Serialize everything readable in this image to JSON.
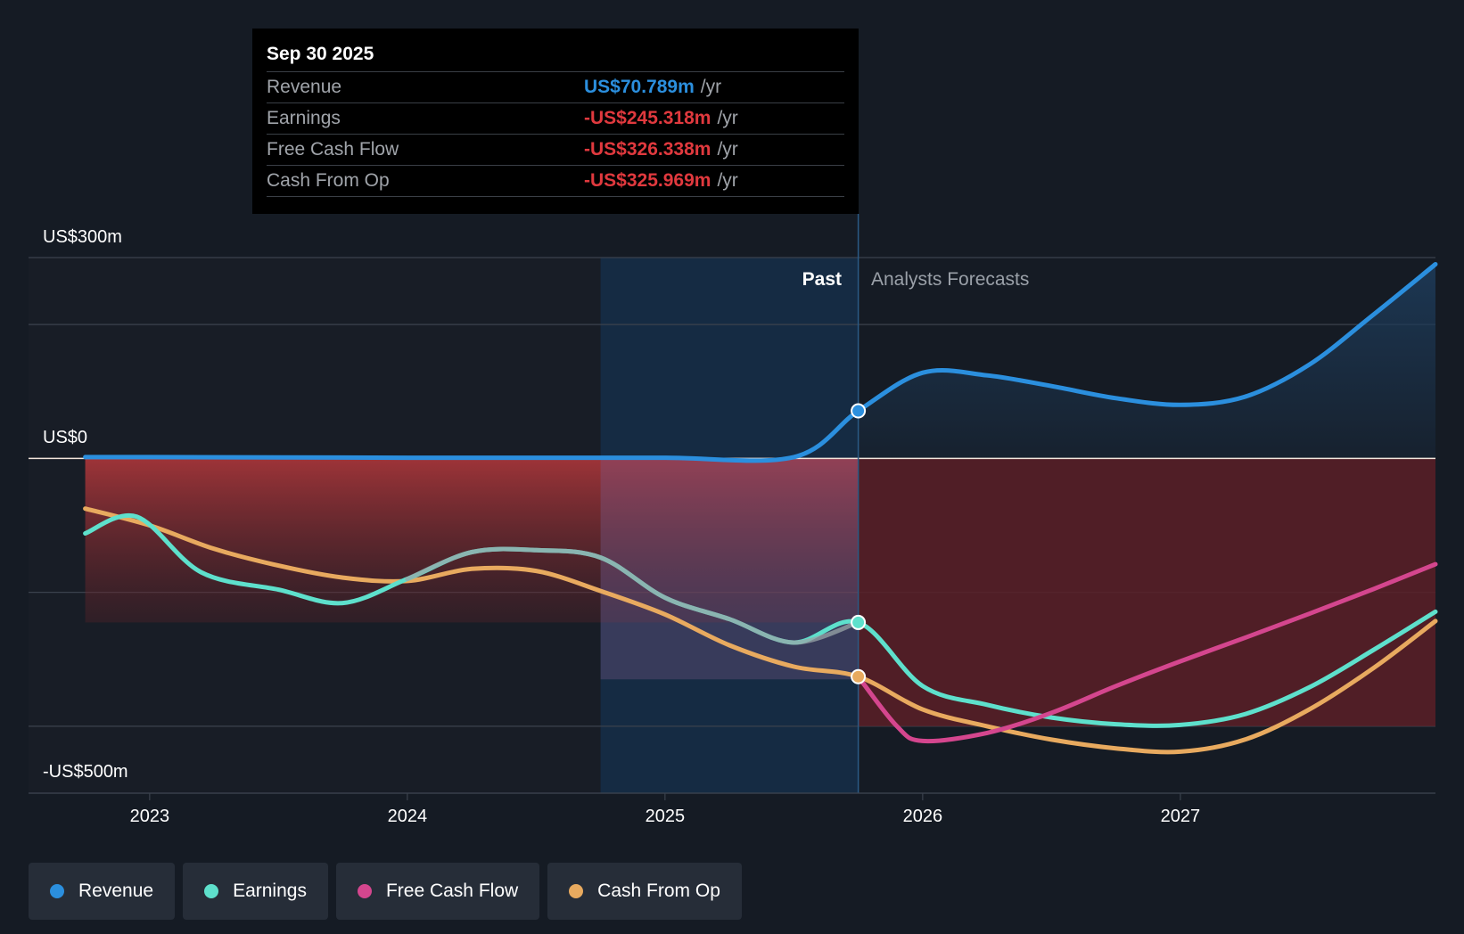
{
  "chart_data": {
    "type": "line",
    "title": "",
    "y_axis_labels": {
      "top": "US$300m",
      "zero": "US$0",
      "bottom": "-US$500m"
    },
    "ylim": [
      -500,
      300
    ],
    "xlim": [
      2022.53,
      2027.99
    ],
    "x_ticks": [
      {
        "value": 2023,
        "label": "2023"
      },
      {
        "value": 2024,
        "label": "2024"
      },
      {
        "value": 2025,
        "label": "2025"
      },
      {
        "value": 2026,
        "label": "2026"
      },
      {
        "value": 2027,
        "label": "2027"
      }
    ],
    "grid_values": [
      300,
      200,
      0,
      -200,
      -400,
      -500
    ],
    "past_label": "Past",
    "forecast_label": "Analysts Forecasts",
    "past_forecast_divider_x": 2025.75,
    "highlight_region_x": [
      2024.75,
      2025.75
    ],
    "series": [
      {
        "name": "Revenue",
        "color": "#2b8fde",
        "x": [
          2022.75,
          2023.0,
          2023.5,
          2024.0,
          2024.5,
          2025.0,
          2025.5,
          2025.75,
          2026.0,
          2026.25,
          2026.5,
          2026.75,
          2027.0,
          2027.25,
          2027.5,
          2027.75,
          2027.99
        ],
        "values": [
          2,
          2,
          1.5,
          1,
          1,
          1,
          2,
          71,
          128,
          124,
          108,
          90,
          80,
          92,
          140,
          215,
          290
        ]
      },
      {
        "name": "Earnings",
        "color": "#5ee0cc",
        "x": [
          2022.75,
          2022.95,
          2023.2,
          2023.5,
          2023.75,
          2024.0,
          2024.25,
          2024.5,
          2024.75,
          2025.0,
          2025.25,
          2025.5,
          2025.75,
          2026.0,
          2026.25,
          2026.5,
          2026.75,
          2027.0,
          2027.25,
          2027.5,
          2027.75,
          2027.99
        ],
        "values": [
          -112,
          -87,
          -170,
          -196,
          -216,
          -180,
          -140,
          -137,
          -148,
          -208,
          -240,
          -275,
          -245,
          -340,
          -368,
          -387,
          -397,
          -398,
          -382,
          -342,
          -286,
          -229
        ]
      },
      {
        "name": "Free Cash Flow",
        "color": "#d4468e",
        "x": [
          2025.75,
          2025.9,
          2026.0,
          2026.25,
          2026.5,
          2026.75,
          2027.0,
          2027.25,
          2027.5,
          2027.75,
          2027.99
        ],
        "values": [
          -326,
          -400,
          -422,
          -410,
          -380,
          -340,
          -303,
          -268,
          -232,
          -195,
          -158
        ]
      },
      {
        "name": "Cash From Op",
        "color": "#e8aa5f",
        "x": [
          2022.75,
          2023.0,
          2023.25,
          2023.5,
          2023.75,
          2024.0,
          2024.25,
          2024.5,
          2024.75,
          2025.0,
          2025.25,
          2025.5,
          2025.75,
          2026.0,
          2026.25,
          2026.5,
          2026.75,
          2027.0,
          2027.25,
          2027.5,
          2027.75,
          2027.99
        ],
        "values": [
          -75,
          -100,
          -135,
          -160,
          -178,
          -183,
          -165,
          -168,
          -198,
          -233,
          -279,
          -311,
          -326,
          -375,
          -400,
          -420,
          -433,
          -438,
          -420,
          -375,
          -313,
          -243
        ]
      }
    ],
    "highlight_points": [
      {
        "series": "Revenue",
        "x": 2025.75,
        "value": 71
      },
      {
        "series": "Earnings",
        "x": 2025.75,
        "value": -245
      },
      {
        "series": "Cash From Op",
        "x": 2025.75,
        "value": -326
      }
    ]
  },
  "tooltip": {
    "date": "Sep 30 2025",
    "rows": [
      {
        "label": "Revenue",
        "value": "US$70.789m",
        "unit": "/yr",
        "color": "#2b8fde"
      },
      {
        "label": "Earnings",
        "value": "-US$245.318m",
        "unit": "/yr",
        "color": "#e0393e"
      },
      {
        "label": "Free Cash Flow",
        "value": "-US$326.338m",
        "unit": "/yr",
        "color": "#e0393e"
      },
      {
        "label": "Cash From Op",
        "value": "-US$325.969m",
        "unit": "/yr",
        "color": "#e0393e"
      }
    ]
  },
  "legend": [
    {
      "label": "Revenue",
      "color": "#2b8fde"
    },
    {
      "label": "Earnings",
      "color": "#5ee0cc"
    },
    {
      "label": "Free Cash Flow",
      "color": "#d4468e"
    },
    {
      "label": "Cash From Op",
      "color": "#e8aa5f"
    }
  ]
}
